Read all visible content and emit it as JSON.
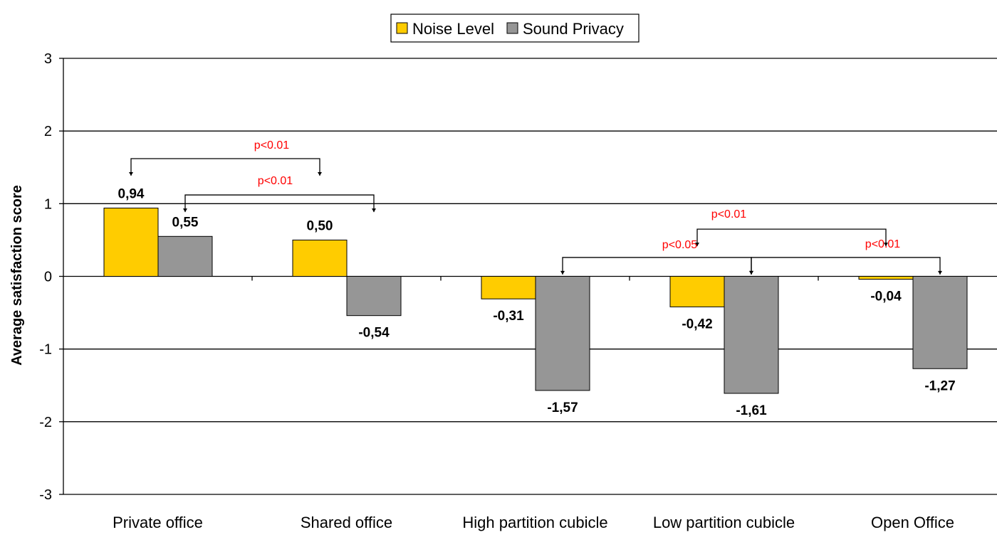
{
  "chart_data": {
    "type": "bar",
    "ylabel": "Average satisfaction score",
    "xlabel": "",
    "ylim": [
      -3,
      3
    ],
    "yticks": [
      "-3",
      "-2",
      "-1",
      "0",
      "1",
      "2",
      "3"
    ],
    "grid": true,
    "legend_position": "top-center",
    "categories": [
      "Private office",
      "Shared office",
      "High partition cubicle",
      "Low partition cubicle",
      "Open Office"
    ],
    "series": [
      {
        "name": "Noise Level",
        "color": "#ffcc00",
        "values": [
          0.94,
          0.5,
          -0.31,
          -0.42,
          -0.04
        ],
        "labels": [
          "0,94",
          "0,50",
          "-0,31",
          "-0,42",
          "-0,04"
        ]
      },
      {
        "name": "Sound Privacy",
        "color": "#969696",
        "values": [
          0.55,
          -0.54,
          -1.57,
          -1.61,
          -1.27
        ],
        "labels": [
          "0,55",
          "-0,54",
          "-1,57",
          "-1,61",
          "-1,27"
        ]
      }
    ],
    "annotations": [
      {
        "text": "p<0.01",
        "from": {
          "category": 0,
          "series": 0
        },
        "to": {
          "category": 1,
          "series": 0
        },
        "level": 1.62
      },
      {
        "text": "p<0.01",
        "from": {
          "category": 0,
          "series": 1
        },
        "to": {
          "category": 1,
          "series": 1
        },
        "level": 1.12
      },
      {
        "text": "p<0.01",
        "from": {
          "category": 3,
          "series": 0
        },
        "to": {
          "category": 4,
          "series": 0
        },
        "level": 0.65
      },
      {
        "text": "p<0.05",
        "from": {
          "category": 2,
          "series": 1
        },
        "to": {
          "category": 3,
          "series": 1
        },
        "level": 0.26
      },
      {
        "text": "p<0.01",
        "from": {
          "category": 3,
          "series": 1
        },
        "to": {
          "category": 4,
          "series": 1
        },
        "level": 0.26
      }
    ]
  }
}
